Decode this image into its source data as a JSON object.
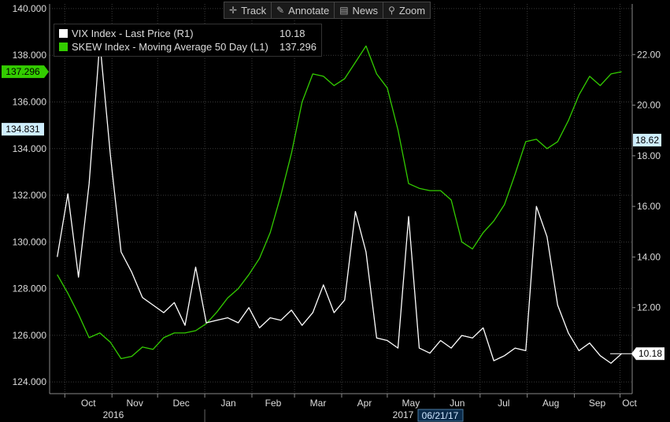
{
  "toolbar": {
    "track": "Track",
    "annotate": "Annotate",
    "news": "News",
    "zoom": "Zoom"
  },
  "legend": {
    "vix_label": "VIX Index - Last Price (R1)",
    "vix_value": "10.18",
    "skew_label": "SKEW Index - Moving Average 50 Day (L1)",
    "skew_value": "137.296"
  },
  "colors": {
    "vix": "#ffffff",
    "skew": "#33cc00",
    "background": "#000000",
    "grid": "#3a3a3a"
  },
  "markers": {
    "left_current": "137.296",
    "left_crosshair": "134.831",
    "right_crosshair": "18.62",
    "right_current": "10.18"
  },
  "date_label": "06/21/17",
  "chart_data": {
    "type": "line",
    "title": "",
    "grid": true,
    "legend_position": "top-left",
    "x_tick_labels": [
      "Oct",
      "Nov",
      "Dec",
      "Jan",
      "Feb",
      "Mar",
      "Apr",
      "May",
      "Jun",
      "Jul",
      "Aug",
      "Sep",
      "Oct"
    ],
    "x_year_labels": [
      "2016",
      "2017"
    ],
    "left_axis": {
      "ylim": [
        123.5,
        140.2
      ],
      "ticks": [
        "124.000",
        "126.000",
        "128.000",
        "130.000",
        "132.000",
        "134.000",
        "136.000",
        "138.000",
        "140.000"
      ]
    },
    "right_axis": {
      "ylim": [
        8.6,
        24.0
      ],
      "ticks": [
        "12.00",
        "14.00",
        "16.00",
        "18.00",
        "20.00",
        "22.00"
      ]
    },
    "series": [
      {
        "name": "SKEW Index - Moving Average 50 Day (L1)",
        "axis": "left",
        "x": [
          "2016-09-26",
          "2016-10-03",
          "2016-10-10",
          "2016-10-17",
          "2016-10-24",
          "2016-10-31",
          "2016-11-07",
          "2016-11-14",
          "2016-11-21",
          "2016-11-28",
          "2016-12-05",
          "2016-12-12",
          "2016-12-19",
          "2016-12-26",
          "2017-01-02",
          "2017-01-09",
          "2017-01-16",
          "2017-01-23",
          "2017-01-30",
          "2017-02-06",
          "2017-02-13",
          "2017-02-20",
          "2017-02-27",
          "2017-03-06",
          "2017-03-13",
          "2017-03-20",
          "2017-03-27",
          "2017-04-03",
          "2017-04-10",
          "2017-04-17",
          "2017-04-24",
          "2017-05-01",
          "2017-05-08",
          "2017-05-15",
          "2017-05-22",
          "2017-05-29",
          "2017-06-05",
          "2017-06-12",
          "2017-06-19",
          "2017-06-26",
          "2017-07-03",
          "2017-07-10",
          "2017-07-17",
          "2017-07-24",
          "2017-07-31",
          "2017-08-07",
          "2017-08-14",
          "2017-08-21",
          "2017-08-28",
          "2017-09-04",
          "2017-09-11",
          "2017-09-18",
          "2017-09-25",
          "2017-10-02"
        ],
        "values": [
          128.6,
          127.8,
          126.9,
          125.9,
          126.1,
          125.7,
          125.0,
          125.1,
          125.5,
          125.4,
          125.9,
          126.1,
          126.1,
          126.2,
          126.5,
          127.0,
          127.6,
          128.0,
          128.6,
          129.3,
          130.4,
          132.0,
          133.8,
          136.0,
          137.2,
          137.1,
          136.7,
          137.0,
          137.7,
          138.4,
          137.2,
          136.6,
          134.8,
          132.5,
          132.3,
          132.2,
          132.2,
          131.8,
          130.0,
          129.7,
          130.4,
          130.9,
          131.6,
          132.9,
          134.3,
          134.4,
          134.0,
          134.3,
          135.2,
          136.3,
          137.1,
          136.7,
          137.2,
          137.296
        ]
      },
      {
        "name": "VIX Index - Last Price (R1)",
        "axis": "right",
        "x": [
          "2016-09-26",
          "2016-10-03",
          "2016-10-10",
          "2016-10-17",
          "2016-10-24",
          "2016-10-31",
          "2016-11-07",
          "2016-11-14",
          "2016-11-21",
          "2016-11-28",
          "2016-12-05",
          "2016-12-12",
          "2016-12-19",
          "2016-12-26",
          "2017-01-02",
          "2017-01-09",
          "2017-01-16",
          "2017-01-23",
          "2017-01-30",
          "2017-02-06",
          "2017-02-13",
          "2017-02-20",
          "2017-02-27",
          "2017-03-06",
          "2017-03-13",
          "2017-03-20",
          "2017-03-27",
          "2017-04-03",
          "2017-04-10",
          "2017-04-17",
          "2017-04-24",
          "2017-05-01",
          "2017-05-08",
          "2017-05-15",
          "2017-05-22",
          "2017-05-29",
          "2017-06-05",
          "2017-06-12",
          "2017-06-19",
          "2017-06-26",
          "2017-07-03",
          "2017-07-10",
          "2017-07-17",
          "2017-07-24",
          "2017-07-31",
          "2017-08-07",
          "2017-08-14",
          "2017-08-21",
          "2017-08-28",
          "2017-09-04",
          "2017-09-11",
          "2017-09-18",
          "2017-09-25",
          "2017-10-02"
        ],
        "values": [
          14.0,
          16.5,
          13.2,
          16.9,
          22.5,
          18.0,
          14.2,
          13.4,
          12.4,
          12.1,
          11.8,
          12.2,
          11.3,
          13.6,
          11.4,
          11.5,
          11.6,
          11.4,
          12.0,
          11.2,
          11.6,
          11.5,
          11.9,
          11.3,
          11.8,
          12.9,
          11.8,
          12.3,
          15.8,
          14.2,
          10.8,
          10.7,
          10.4,
          15.6,
          10.4,
          10.2,
          10.7,
          10.4,
          10.9,
          10.8,
          11.2,
          9.9,
          10.1,
          10.4,
          10.3,
          16.0,
          14.8,
          12.1,
          11.0,
          10.3,
          10.6,
          10.1,
          9.8,
          10.18
        ]
      }
    ]
  }
}
